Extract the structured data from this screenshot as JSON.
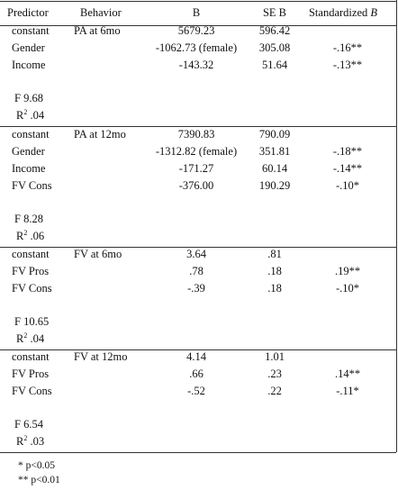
{
  "header": {
    "predictor": "Predictor",
    "behavior": "Behavior",
    "b": "B",
    "se_b": "SE B",
    "standardized": "Standardized",
    "standardized_symbol": "B"
  },
  "sections": [
    {
      "rows": [
        [
          "constant",
          "PA at 6mo",
          "5679.23",
          "596.42",
          ""
        ],
        [
          "Gender",
          "",
          "-1062.73 (female)",
          "305.08",
          "-.16**"
        ],
        [
          "Income",
          "",
          "-143.32",
          "51.64",
          "-.13**"
        ]
      ],
      "f": "F 9.68",
      "r2": {
        "base": "R",
        "sup": "2",
        "value": ".04"
      }
    },
    {
      "rows": [
        [
          "constant",
          "PA at 12mo",
          "7390.83",
          "790.09",
          ""
        ],
        [
          "Gender",
          "",
          "-1312.82 (female)",
          "351.81",
          "-.18**"
        ],
        [
          "Income",
          "",
          "-171.27",
          "60.14",
          "-.14**"
        ],
        [
          "FV Cons",
          "",
          "-376.00",
          "190.29",
          "-.10*"
        ]
      ],
      "f": "F 8.28",
      "r2": {
        "base": "R",
        "sup": "2",
        "value": ".06"
      }
    },
    {
      "rows": [
        [
          "constant",
          "FV at 6mo",
          "3.64",
          ".81",
          ""
        ],
        [
          "FV Pros",
          "",
          ".78",
          ".18",
          ".19**"
        ],
        [
          "FV Cons",
          "",
          "-.39",
          ".18",
          "-.10*"
        ]
      ],
      "f": "F 10.65",
      "r2": {
        "base": "R",
        "sup": "2",
        "value": ".04"
      }
    },
    {
      "rows": [
        [
          "constant",
          "FV at 12mo",
          "4.14",
          "1.01",
          ""
        ],
        [
          "FV Pros",
          "",
          ".66",
          ".23",
          ".14**"
        ],
        [
          "FV Cons",
          "",
          "-.52",
          ".22",
          "-.11*"
        ]
      ],
      "f": "F 6.54",
      "r2": {
        "base": "R",
        "sup": "2",
        "value": ".03"
      }
    }
  ],
  "footnotes": [
    "* p<0.05",
    "** p<0.01"
  ]
}
